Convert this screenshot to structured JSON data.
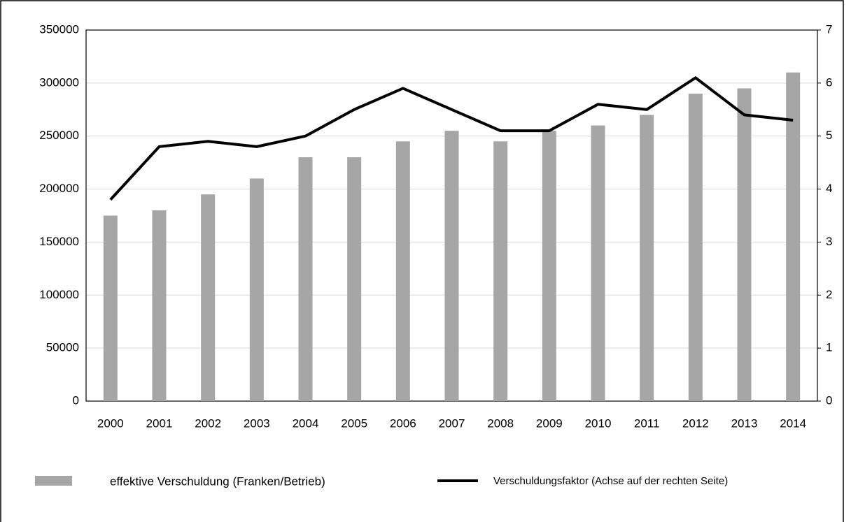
{
  "chart_data": {
    "type": "bar",
    "categories": [
      "2000",
      "2001",
      "2002",
      "2003",
      "2004",
      "2005",
      "2006",
      "2007",
      "2008",
      "2009",
      "2010",
      "2011",
      "2012",
      "2013",
      "2014"
    ],
    "series": [
      {
        "name": "effektive Verschuldung (Franken/Betrieb)",
        "color": "#a6a6a6",
        "values": [
          175000,
          180000,
          195000,
          210000,
          230000,
          230000,
          245000,
          255000,
          245000,
          255000,
          260000,
          270000,
          290000,
          295000,
          310000
        ]
      },
      {
        "name": "Verschuldungsfaktor (Achse auf der rechten Seite)",
        "color": "#000000",
        "type": "line",
        "axis": "y2",
        "values": [
          3.8,
          4.8,
          4.9,
          4.8,
          5.0,
          5.5,
          5.9,
          5.5,
          5.1,
          5.1,
          5.6,
          5.5,
          6.1,
          5.4,
          5.3
        ]
      }
    ],
    "ylim": [
      0,
      350000
    ],
    "yticks": [
      0,
      50000,
      100000,
      150000,
      200000,
      250000,
      300000,
      350000
    ],
    "y2lim": [
      0,
      7
    ],
    "y2ticks": [
      0,
      1,
      2,
      3,
      4,
      5,
      6,
      7
    ],
    "grid": true
  }
}
